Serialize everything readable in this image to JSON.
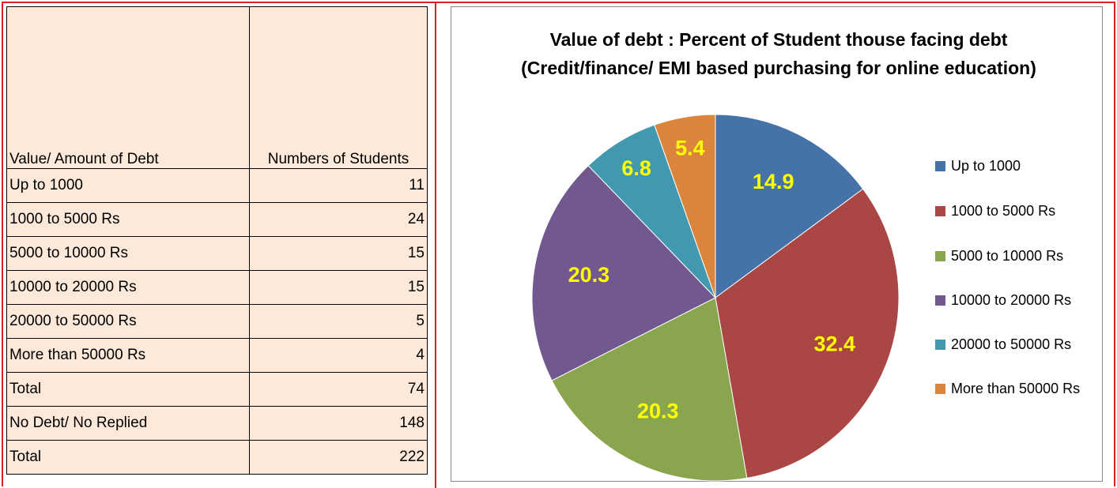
{
  "table": {
    "header": [
      "Value/ Amount of Debt",
      "Numbers of Students"
    ],
    "rows": [
      [
        "Up to 1000",
        11
      ],
      [
        "1000 to 5000 Rs",
        24
      ],
      [
        "5000 to 10000 Rs",
        15
      ],
      [
        "10000 to 20000 Rs",
        15
      ],
      [
        "20000 to 50000 Rs",
        5
      ],
      [
        "More than 50000 Rs",
        4
      ],
      [
        "Total",
        74
      ],
      [
        "No Debt/ No Replied",
        148
      ],
      [
        " Total",
        222
      ]
    ]
  },
  "chart_data": {
    "type": "pie",
    "title": "Value of debt : Percent of Student thouse facing debt (Credit/finance/ EMI based purchasing for online education)",
    "categories": [
      "Up to 1000",
      "1000 to 5000 Rs",
      "5000 to 10000 Rs",
      "10000 to 20000 Rs",
      "20000 to 50000 Rs",
      "More than 50000 Rs"
    ],
    "values": [
      14.9,
      32.4,
      20.3,
      20.3,
      6.8,
      5.4
    ],
    "colors": [
      "#4572a7",
      "#aa4643",
      "#89a54e",
      "#71588f",
      "#4198af",
      "#db843d"
    ],
    "label_color": "#ffff00",
    "legend": "right"
  }
}
